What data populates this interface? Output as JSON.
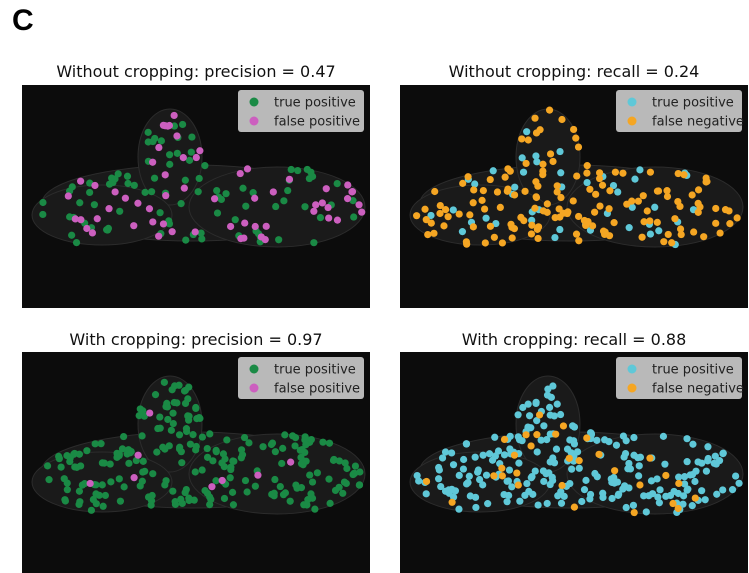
{
  "figure": {
    "label": "C",
    "panels": [
      {
        "title": "Without cropping: precision = 0.47",
        "legend": [
          {
            "name": "true positive",
            "color": "#1a8a45"
          },
          {
            "name": "false positive",
            "color": "#cc5fbf"
          }
        ]
      },
      {
        "title": "Without cropping: recall = 0.24",
        "legend": [
          {
            "name": "true positive",
            "color": "#5fc8d8"
          },
          {
            "name": "false negative",
            "color": "#f5a623"
          }
        ]
      },
      {
        "title": "With cropping:  precision = 0.97",
        "legend": [
          {
            "name": "true positive",
            "color": "#1a8a45"
          },
          {
            "name": "false positive",
            "color": "#cc5fbf"
          }
        ]
      },
      {
        "title": "With cropping:  recall = 0.88",
        "legend": [
          {
            "name": "true positive",
            "color": "#5fc8d8"
          },
          {
            "name": "false negative",
            "color": "#f5a623"
          }
        ]
      }
    ]
  }
}
